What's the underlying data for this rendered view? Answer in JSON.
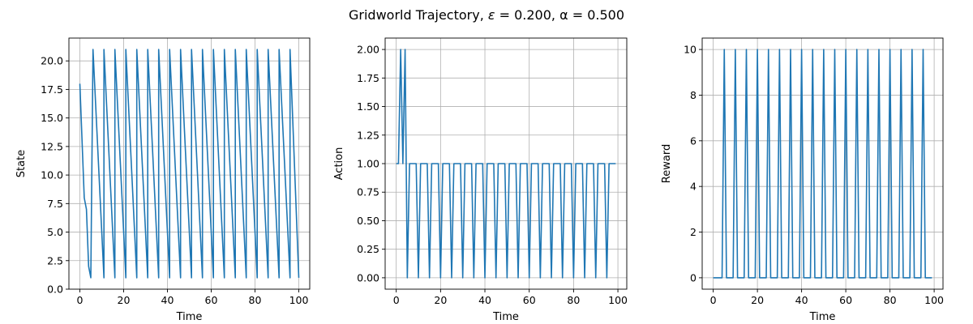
{
  "figure": {
    "title_prefix": "Gridworld Trajectory, ",
    "title_eps_symbol": "ε",
    "title_rest": " = 0.200, α = 0.500"
  },
  "chart_data": [
    {
      "type": "line",
      "xlabel": "Time",
      "ylabel": "State",
      "xlim": [
        -5,
        105
      ],
      "ylim": [
        0,
        22
      ],
      "xticks": [
        0,
        20,
        40,
        60,
        80,
        100
      ],
      "yticks": [
        0.0,
        2.5,
        5.0,
        7.5,
        10.0,
        12.5,
        15.0,
        17.5,
        20.0
      ],
      "ytick_labels": [
        "0.0",
        "2.5",
        "5.0",
        "7.5",
        "10.0",
        "12.5",
        "15.0",
        "17.5",
        "20.0"
      ],
      "grid": true,
      "color": "#1f77b4",
      "series": [
        {
          "x": [
            0,
            2,
            3,
            4,
            5,
            6,
            11,
            16,
            21,
            26,
            31,
            36,
            41,
            46,
            51,
            56,
            61,
            66,
            71,
            76,
            81,
            86,
            91,
            96,
            100
          ],
          "y": [
            18,
            8,
            7,
            2,
            1,
            21,
            1,
            21,
            1,
            21,
            1,
            21,
            1,
            21,
            1,
            21,
            1,
            21,
            1,
            21,
            1,
            21,
            1,
            21,
            1
          ],
          "sawtooth": {
            "start": 6,
            "period": 5,
            "high": 21,
            "low": 1,
            "end": 100
          }
        }
      ]
    },
    {
      "type": "line",
      "xlabel": "Time",
      "ylabel": "Action",
      "xlim": [
        -5,
        104
      ],
      "ylim": [
        -0.1,
        2.1
      ],
      "xticks": [
        0,
        20,
        40,
        60,
        80,
        100
      ],
      "yticks": [
        0.0,
        0.25,
        0.5,
        0.75,
        1.0,
        1.25,
        1.5,
        1.75,
        2.0
      ],
      "ytick_labels": [
        "0.00",
        "0.25",
        "0.50",
        "0.75",
        "1.00",
        "1.25",
        "1.50",
        "1.75",
        "2.00"
      ],
      "grid": true,
      "color": "#1f77b4",
      "series": [
        {
          "x": [
            0,
            1,
            2,
            3,
            4,
            5
          ],
          "y": [
            1,
            1,
            2,
            1,
            2,
            0
          ],
          "pattern": {
            "start": 5,
            "period": 5,
            "zero_every": true,
            "value": 1,
            "end": 99
          }
        }
      ]
    },
    {
      "type": "line",
      "xlabel": "Time",
      "ylabel": "Reward",
      "xlim": [
        -5,
        104
      ],
      "ylim": [
        -0.5,
        10.5
      ],
      "xticks": [
        0,
        20,
        40,
        60,
        80,
        100
      ],
      "yticks": [
        0,
        2,
        4,
        6,
        8,
        10
      ],
      "ytick_labels": [
        "0",
        "2",
        "4",
        "6",
        "8",
        "10"
      ],
      "grid": true,
      "color": "#1f77b4",
      "series": [
        {
          "spikes": {
            "start": 5,
            "period": 5,
            "height": 10,
            "end": 99
          }
        }
      ]
    }
  ]
}
